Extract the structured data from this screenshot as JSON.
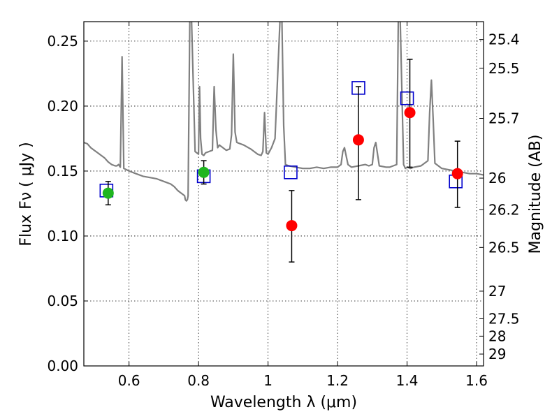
{
  "chart_data": {
    "type": "scatter",
    "title": "",
    "xlabel": "Wavelength  λ (μm)",
    "ylabel": "Flux  Fν  ( μJy )",
    "y2label": "Magnitude (AB)",
    "xlim": [
      0.47,
      1.62
    ],
    "ylim": [
      0.0,
      0.265
    ],
    "grid": true,
    "x_ticks": [
      {
        "value": 0.6,
        "label": "0.6"
      },
      {
        "value": 0.8,
        "label": "0.8"
      },
      {
        "value": 1.0,
        "label": "1"
      },
      {
        "value": 1.2,
        "label": "1.2"
      },
      {
        "value": 1.4,
        "label": "1.4"
      },
      {
        "value": 1.6,
        "label": "1.6"
      }
    ],
    "y_ticks": [
      {
        "value": 0.0,
        "label": "0.00"
      },
      {
        "value": 0.05,
        "label": "0.05"
      },
      {
        "value": 0.1,
        "label": "0.10"
      },
      {
        "value": 0.15,
        "label": "0.15"
      },
      {
        "value": 0.2,
        "label": "0.20"
      },
      {
        "value": 0.25,
        "label": "0.25"
      }
    ],
    "y2_ticks": [
      {
        "mag": 25.4,
        "label": "25.4"
      },
      {
        "mag": 25.5,
        "label": "25.5"
      },
      {
        "mag": 25.7,
        "label": "25.7"
      },
      {
        "mag": 26.0,
        "label": "26"
      },
      {
        "mag": 26.2,
        "label": "26.2"
      },
      {
        "mag": 26.5,
        "label": "26.5"
      },
      {
        "mag": 27.0,
        "label": "27"
      },
      {
        "mag": 27.5,
        "label": "27.5"
      },
      {
        "mag": 28.0,
        "label": "28"
      },
      {
        "mag": 29.0,
        "label": "29"
      }
    ],
    "series": [
      {
        "kind": "spectrum",
        "color": "#808080",
        "x": [
          0.47,
          0.48,
          0.49,
          0.5,
          0.51,
          0.52,
          0.53,
          0.54,
          0.55,
          0.56,
          0.565,
          0.57,
          0.575,
          0.58,
          0.585,
          0.6,
          0.62,
          0.64,
          0.66,
          0.68,
          0.7,
          0.72,
          0.73,
          0.74,
          0.75,
          0.76,
          0.762,
          0.765,
          0.768,
          0.77,
          0.775,
          0.78,
          0.79,
          0.8,
          0.803,
          0.806,
          0.81,
          0.815,
          0.82,
          0.83,
          0.84,
          0.845,
          0.85,
          0.855,
          0.86,
          0.87,
          0.88,
          0.89,
          0.895,
          0.9,
          0.905,
          0.91,
          0.93,
          0.95,
          0.96,
          0.97,
          0.98,
          0.985,
          0.99,
          0.995,
          1.0,
          1.01,
          1.02,
          1.035,
          1.04,
          1.045,
          1.05,
          1.06,
          1.08,
          1.1,
          1.12,
          1.14,
          1.16,
          1.18,
          1.2,
          1.21,
          1.215,
          1.22,
          1.23,
          1.24,
          1.26,
          1.28,
          1.29,
          1.3,
          1.305,
          1.31,
          1.32,
          1.34,
          1.35,
          1.36,
          1.37,
          1.375,
          1.38,
          1.39,
          1.395,
          1.4,
          1.41,
          1.42,
          1.44,
          1.46,
          1.465,
          1.47,
          1.475,
          1.48,
          1.5,
          1.52,
          1.54,
          1.56,
          1.58,
          1.6,
          1.62
        ],
        "y": [
          0.172,
          0.171,
          0.168,
          0.166,
          0.164,
          0.162,
          0.16,
          0.157,
          0.155,
          0.154,
          0.154,
          0.155,
          0.153,
          0.238,
          0.152,
          0.15,
          0.148,
          0.146,
          0.145,
          0.144,
          0.142,
          0.14,
          0.138,
          0.135,
          0.133,
          0.131,
          0.128,
          0.127,
          0.128,
          0.131,
          0.27,
          0.265,
          0.165,
          0.163,
          0.215,
          0.175,
          0.163,
          0.162,
          0.164,
          0.165,
          0.166,
          0.215,
          0.182,
          0.168,
          0.17,
          0.168,
          0.166,
          0.167,
          0.178,
          0.24,
          0.18,
          0.172,
          0.17,
          0.167,
          0.165,
          0.163,
          0.162,
          0.165,
          0.195,
          0.164,
          0.163,
          0.168,
          0.175,
          0.27,
          0.265,
          0.185,
          0.155,
          0.154,
          0.153,
          0.152,
          0.152,
          0.153,
          0.152,
          0.153,
          0.153,
          0.155,
          0.165,
          0.168,
          0.155,
          0.153,
          0.154,
          0.155,
          0.154,
          0.155,
          0.168,
          0.172,
          0.154,
          0.153,
          0.153,
          0.154,
          0.155,
          0.27,
          0.27,
          0.155,
          0.152,
          0.153,
          0.152,
          0.153,
          0.154,
          0.158,
          0.195,
          0.22,
          0.19,
          0.156,
          0.152,
          0.151,
          0.15,
          0.149,
          0.148,
          0.148,
          0.147
        ]
      },
      {
        "kind": "model-photometry",
        "color": "#0000cc",
        "marker": "open-square",
        "x": [
          0.535,
          0.815,
          1.065,
          1.26,
          1.4,
          1.54
        ],
        "y": [
          0.135,
          0.146,
          0.149,
          0.214,
          0.206,
          0.142
        ]
      },
      {
        "kind": "observed-photometry",
        "color": "#1fb51f",
        "marker": "filled-circle",
        "x": [
          0.54,
          0.815
        ],
        "y": [
          0.133,
          0.149
        ],
        "yerr_low": [
          0.124,
          0.14
        ],
        "yerr_high": [
          0.142,
          0.158
        ]
      },
      {
        "kind": "observed-photometry",
        "color": "#ff0000",
        "marker": "filled-circle",
        "x": [
          1.068,
          1.26,
          1.408,
          1.545
        ],
        "y": [
          0.108,
          0.174,
          0.195,
          0.148
        ],
        "yerr_low": [
          0.08,
          0.128,
          0.153,
          0.122
        ],
        "yerr_high": [
          0.135,
          0.215,
          0.236,
          0.173
        ]
      }
    ]
  }
}
